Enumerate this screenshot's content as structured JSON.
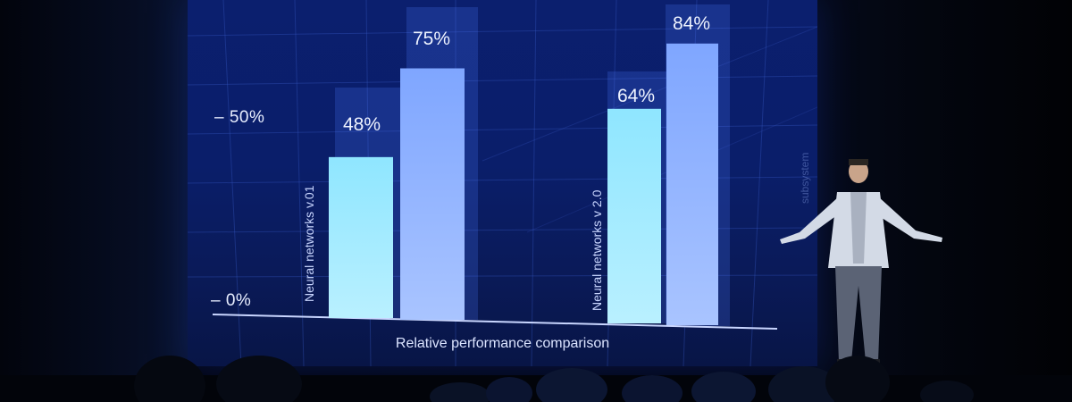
{
  "chart_data": {
    "type": "bar",
    "yticks": [
      "– 50%",
      "– 0%"
    ],
    "groups": [
      {
        "label": "Neural networks v.01",
        "values": [
          48,
          75
        ],
        "value_labels": [
          "48%",
          "75%"
        ]
      },
      {
        "label": "Neural networks v 2.0",
        "values": [
          64,
          84
        ],
        "value_labels": [
          "64%",
          "84%"
        ]
      }
    ],
    "ylim": [
      0,
      100
    ],
    "xlabel": "Relative performance comparison",
    "side_text": "subsystem"
  },
  "colors": {
    "bar_light": "#8fe6ff",
    "bar_blue": "#7fa6ff",
    "screen": "#0b1f6e"
  }
}
